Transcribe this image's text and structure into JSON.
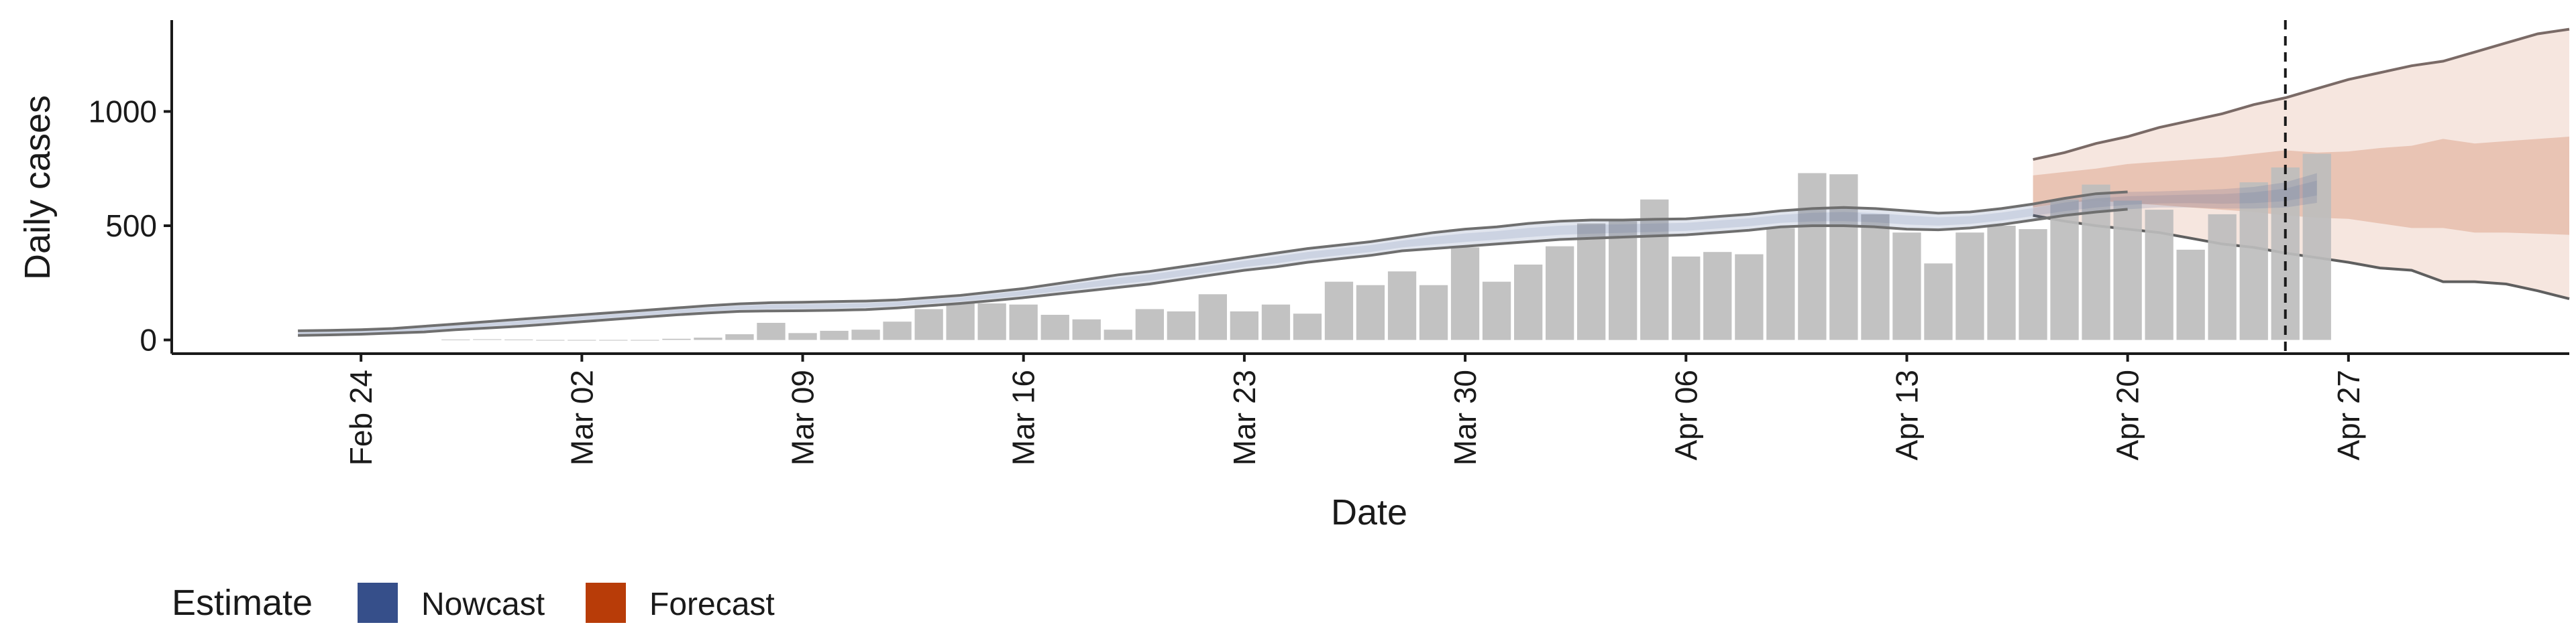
{
  "chart_data": {
    "type": "bar",
    "xlabel": "Date",
    "ylabel": "Daily cases",
    "x_range": [
      "2020-02-18",
      "2020-05-04"
    ],
    "ylim": [
      -60,
      1400
    ],
    "y_ticks": [
      0,
      500,
      1000
    ],
    "x_ticks": [
      {
        "date": "2020-02-24",
        "label": "Feb 24"
      },
      {
        "date": "2020-03-02",
        "label": "Mar 02"
      },
      {
        "date": "2020-03-09",
        "label": "Mar 09"
      },
      {
        "date": "2020-03-16",
        "label": "Mar 16"
      },
      {
        "date": "2020-03-23",
        "label": "Mar 23"
      },
      {
        "date": "2020-03-30",
        "label": "Mar 30"
      },
      {
        "date": "2020-04-06",
        "label": "Apr 06"
      },
      {
        "date": "2020-04-13",
        "label": "Apr 13"
      },
      {
        "date": "2020-04-20",
        "label": "Apr 20"
      },
      {
        "date": "2020-04-27",
        "label": "Apr 27"
      }
    ],
    "grid": false,
    "observed_cases": {
      "start_date": "2020-02-27",
      "values": [
        2,
        3,
        2,
        0,
        0,
        0,
        0,
        5,
        10,
        25,
        75,
        30,
        40,
        45,
        80,
        135,
        160,
        160,
        155,
        110,
        90,
        45,
        135,
        125,
        200,
        125,
        155,
        115,
        255,
        240,
        300,
        240,
        405,
        255,
        330,
        410,
        510,
        520,
        615,
        365,
        385,
        375,
        490,
        730,
        725,
        550,
        470,
        335,
        470,
        500,
        485,
        615,
        680,
        610,
        570,
        395,
        550,
        690,
        755,
        815
      ],
      "color": "#bdbdbd"
    },
    "nowcast": {
      "start_date": "2020-02-22",
      "color": "#364f8a",
      "upper": [
        40,
        42,
        45,
        50,
        60,
        70,
        80,
        90,
        100,
        110,
        120,
        130,
        140,
        150,
        158,
        163,
        165,
        168,
        170,
        175,
        185,
        195,
        210,
        225,
        245,
        265,
        285,
        300,
        320,
        340,
        360,
        380,
        400,
        415,
        430,
        450,
        470,
        485,
        495,
        510,
        520,
        525,
        525,
        528,
        530,
        540,
        550,
        565,
        575,
        580,
        575,
        565,
        555,
        560,
        575,
        595,
        620,
        640,
        648,
        650,
        655,
        660,
        670,
        690,
        730
      ],
      "lower": [
        20,
        22,
        25,
        30,
        35,
        45,
        52,
        60,
        70,
        80,
        90,
        100,
        110,
        118,
        125,
        127,
        128,
        130,
        133,
        140,
        150,
        160,
        172,
        185,
        200,
        215,
        230,
        245,
        265,
        285,
        305,
        320,
        340,
        355,
        370,
        390,
        400,
        410,
        420,
        430,
        440,
        445,
        450,
        455,
        460,
        470,
        480,
        495,
        500,
        500,
        495,
        485,
        482,
        490,
        505,
        525,
        545,
        560,
        572,
        580,
        580,
        575,
        575,
        580,
        600
      ]
    },
    "forecast": {
      "start_date": "2020-04-17",
      "color": "#b83c08",
      "outer_upper": [
        790,
        820,
        860,
        890,
        930,
        960,
        990,
        1030,
        1060,
        1100,
        1140,
        1170,
        1200,
        1220,
        1260,
        1300,
        1340,
        1360
      ],
      "outer_lower": [
        545,
        520,
        500,
        485,
        470,
        445,
        420,
        405,
        380,
        360,
        340,
        315,
        305,
        255,
        255,
        245,
        215,
        180
      ],
      "inner_upper": [
        720,
        735,
        750,
        770,
        780,
        790,
        800,
        815,
        830,
        820,
        825,
        840,
        850,
        880,
        860,
        870,
        880,
        890
      ],
      "inner_lower": [
        580,
        600,
        610,
        600,
        590,
        580,
        570,
        560,
        545,
        535,
        530,
        510,
        490,
        490,
        470,
        470,
        465,
        460
      ]
    },
    "vline_date": "2020-04-25",
    "legend": {
      "title": "Estimate",
      "position": "bottom-left",
      "items": [
        {
          "label": "Nowcast",
          "color": "#364f8a"
        },
        {
          "label": "Forecast",
          "color": "#b83c08"
        }
      ]
    }
  }
}
